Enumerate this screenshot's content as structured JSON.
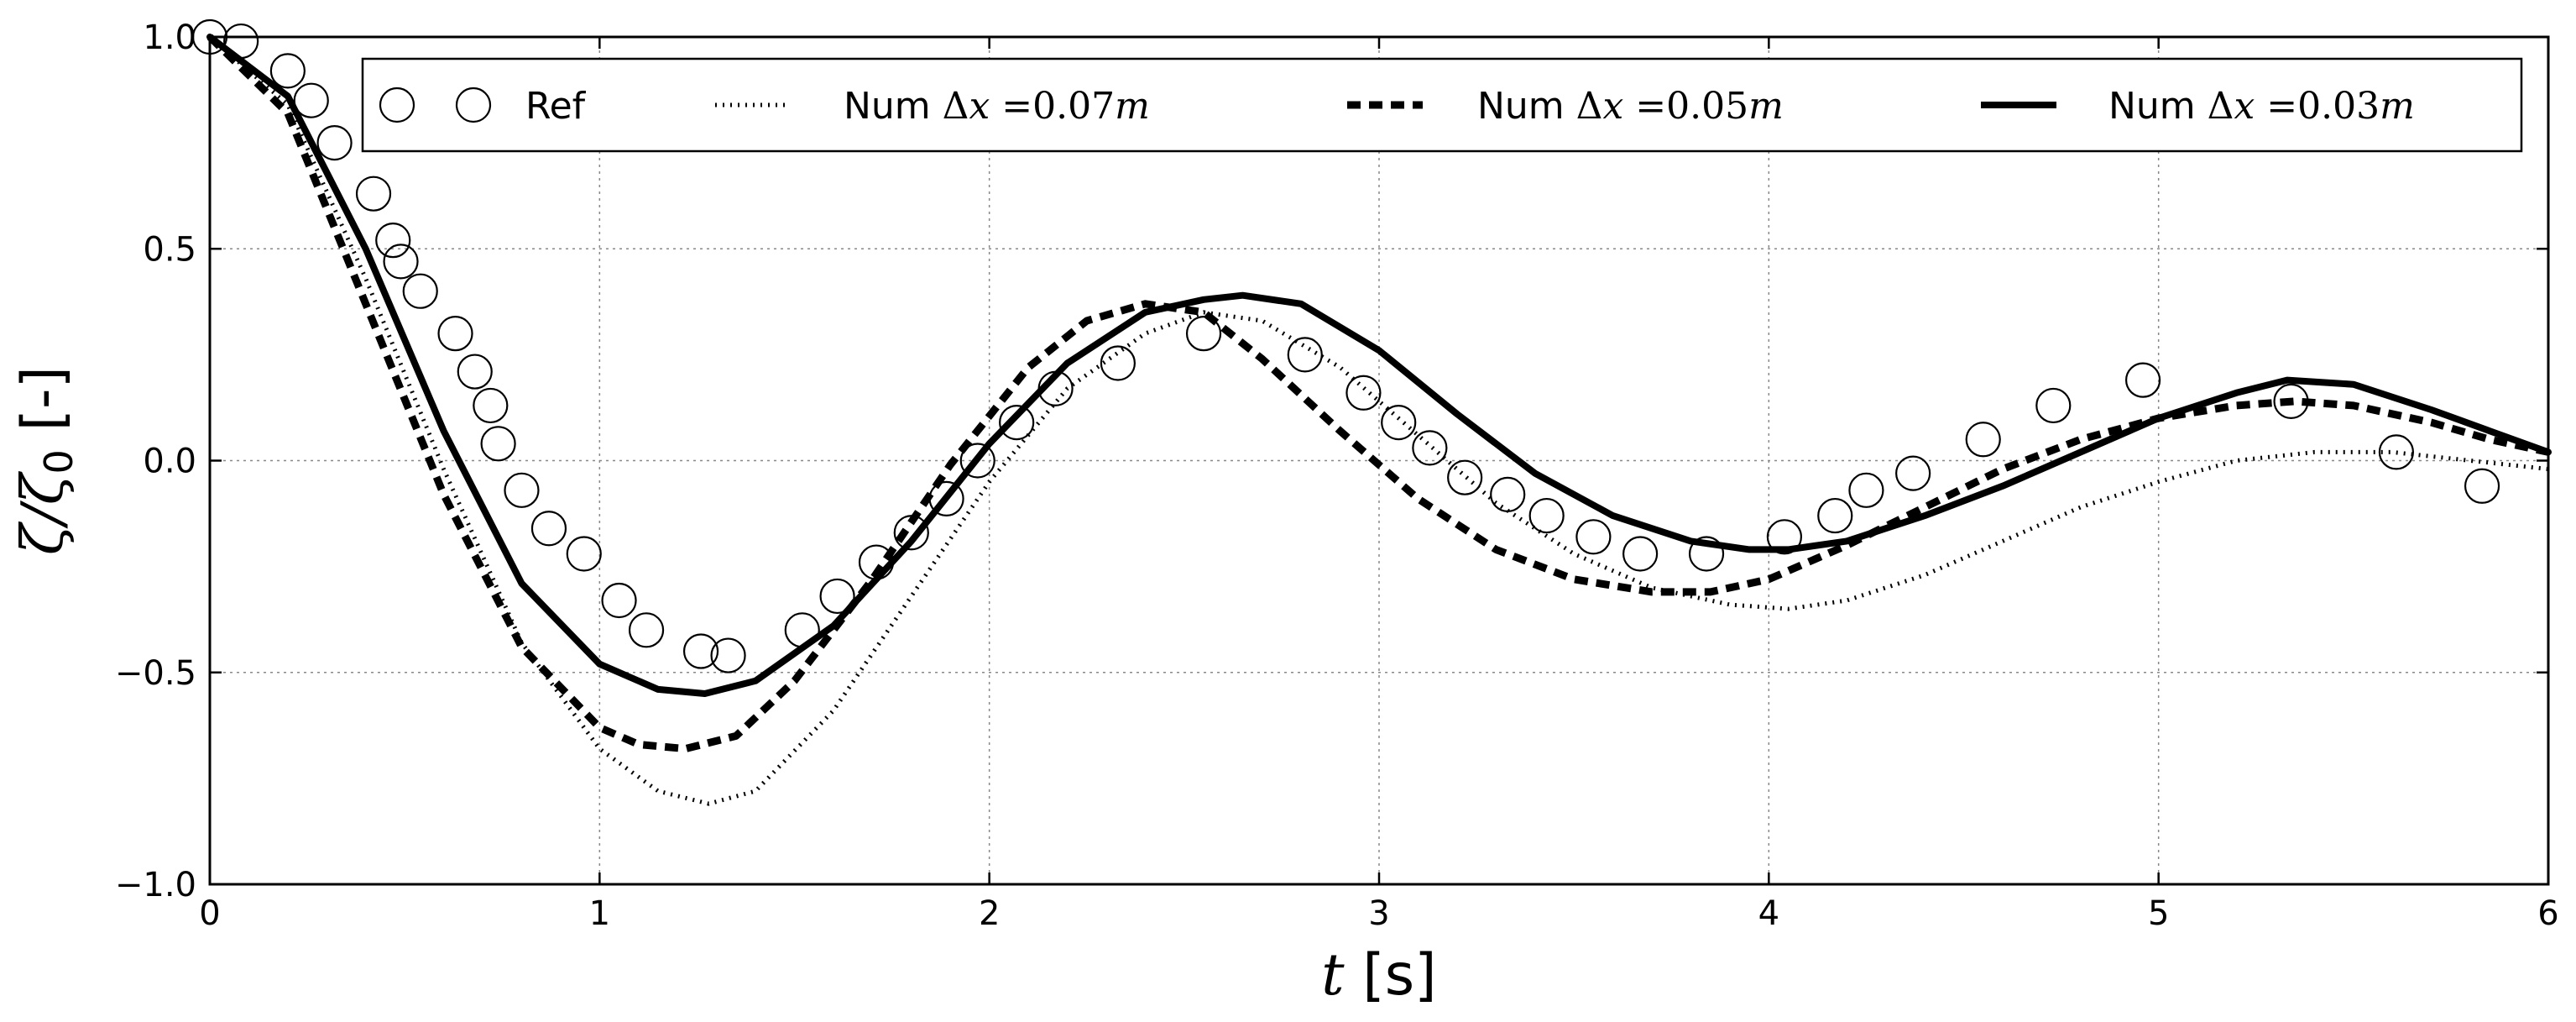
{
  "chart_data": {
    "type": "line",
    "xlabel": "t [s]",
    "ylabel": "ζ/ζ0 [-]",
    "xlim": [
      0,
      6
    ],
    "ylim": [
      -1.0,
      1.0
    ],
    "xticks": [
      0,
      1,
      2,
      3,
      4,
      5,
      6
    ],
    "xtick_labels": [
      "0",
      "1",
      "2",
      "3",
      "4",
      "5",
      "6"
    ],
    "yticks": [
      -1.0,
      -0.5,
      0.0,
      0.5,
      1.0
    ],
    "ytick_labels": [
      "−1.0",
      "−0.5",
      "0.0",
      "0.5",
      "1.0"
    ],
    "grid": true,
    "legend_position": "top",
    "series": [
      {
        "name": "Ref",
        "style": "markers-open-circle",
        "color": "#000000",
        "x": [
          0.0,
          0.08,
          0.2,
          0.26,
          0.32,
          0.42,
          0.47,
          0.49,
          0.54,
          0.63,
          0.68,
          0.72,
          0.74,
          0.8,
          0.87,
          0.96,
          1.05,
          1.12,
          1.26,
          1.33,
          1.52,
          1.61,
          1.71,
          1.8,
          1.89,
          1.97,
          2.07,
          2.17,
          2.33,
          2.55,
          2.81,
          2.96,
          3.05,
          3.13,
          3.22,
          3.33,
          3.43,
          3.55,
          3.67,
          3.84,
          4.04,
          4.17,
          4.25,
          4.37,
          4.55,
          4.73,
          4.96,
          5.34,
          5.61,
          5.83
        ],
        "y": [
          1.0,
          0.99,
          0.92,
          0.85,
          0.75,
          0.63,
          0.52,
          0.47,
          0.4,
          0.3,
          0.21,
          0.13,
          0.04,
          -0.07,
          -0.16,
          -0.22,
          -0.33,
          -0.4,
          -0.45,
          -0.46,
          -0.4,
          -0.32,
          -0.24,
          -0.17,
          -0.09,
          0.0,
          0.09,
          0.17,
          0.23,
          0.3,
          0.25,
          0.16,
          0.09,
          0.03,
          -0.04,
          -0.08,
          -0.13,
          -0.18,
          -0.22,
          -0.22,
          -0.18,
          -0.13,
          -0.07,
          -0.03,
          0.05,
          0.13,
          0.19,
          0.14,
          0.02,
          -0.06
        ]
      },
      {
        "name": "Num Δx =0.07m",
        "style": "dotted",
        "color": "#000000",
        "x": [
          0.0,
          0.2,
          0.4,
          0.6,
          0.8,
          1.0,
          1.15,
          1.28,
          1.4,
          1.6,
          1.8,
          2.0,
          2.2,
          2.4,
          2.55,
          2.7,
          2.9,
          3.1,
          3.3,
          3.5,
          3.7,
          3.9,
          4.05,
          4.2,
          4.4,
          4.6,
          4.8,
          5.0,
          5.2,
          5.4,
          5.6,
          5.8,
          6.0
        ],
        "y": [
          1.0,
          0.84,
          0.43,
          -0.02,
          -0.43,
          -0.68,
          -0.78,
          -0.81,
          -0.78,
          -0.59,
          -0.32,
          -0.05,
          0.17,
          0.3,
          0.35,
          0.33,
          0.22,
          0.06,
          -0.1,
          -0.22,
          -0.3,
          -0.34,
          -0.35,
          -0.33,
          -0.27,
          -0.19,
          -0.11,
          -0.05,
          0.0,
          0.02,
          0.02,
          0.0,
          -0.02
        ]
      },
      {
        "name": "Num Δx =0.05m",
        "style": "dashed",
        "color": "#000000",
        "x": [
          0.0,
          0.2,
          0.4,
          0.6,
          0.8,
          1.0,
          1.1,
          1.22,
          1.35,
          1.5,
          1.7,
          1.9,
          2.1,
          2.25,
          2.4,
          2.55,
          2.7,
          2.9,
          3.1,
          3.3,
          3.5,
          3.7,
          3.85,
          4.0,
          4.2,
          4.4,
          4.6,
          4.8,
          5.0,
          5.2,
          5.35,
          5.5,
          5.7,
          5.85,
          6.0
        ],
        "y": [
          1.0,
          0.82,
          0.37,
          -0.08,
          -0.44,
          -0.63,
          -0.67,
          -0.68,
          -0.65,
          -0.52,
          -0.28,
          -0.01,
          0.22,
          0.33,
          0.37,
          0.35,
          0.24,
          0.07,
          -0.09,
          -0.21,
          -0.28,
          -0.31,
          -0.31,
          -0.28,
          -0.2,
          -0.11,
          -0.02,
          0.05,
          0.1,
          0.13,
          0.14,
          0.13,
          0.09,
          0.05,
          0.02
        ]
      },
      {
        "name": "Num Δx =0.03m",
        "style": "solid",
        "color": "#000000",
        "x": [
          0.0,
          0.2,
          0.4,
          0.6,
          0.8,
          1.0,
          1.15,
          1.27,
          1.4,
          1.6,
          1.8,
          2.0,
          2.2,
          2.4,
          2.55,
          2.65,
          2.8,
          3.0,
          3.2,
          3.4,
          3.6,
          3.8,
          3.95,
          4.05,
          4.2,
          4.4,
          4.6,
          4.8,
          5.0,
          5.2,
          5.33,
          5.5,
          5.7,
          5.85,
          6.0
        ],
        "y": [
          1.0,
          0.86,
          0.5,
          0.07,
          -0.29,
          -0.48,
          -0.54,
          -0.55,
          -0.52,
          -0.39,
          -0.19,
          0.04,
          0.23,
          0.35,
          0.38,
          0.39,
          0.37,
          0.26,
          0.11,
          -0.03,
          -0.13,
          -0.19,
          -0.21,
          -0.21,
          -0.19,
          -0.13,
          -0.06,
          0.02,
          0.1,
          0.16,
          0.19,
          0.18,
          0.12,
          0.07,
          0.02
        ]
      }
    ]
  }
}
